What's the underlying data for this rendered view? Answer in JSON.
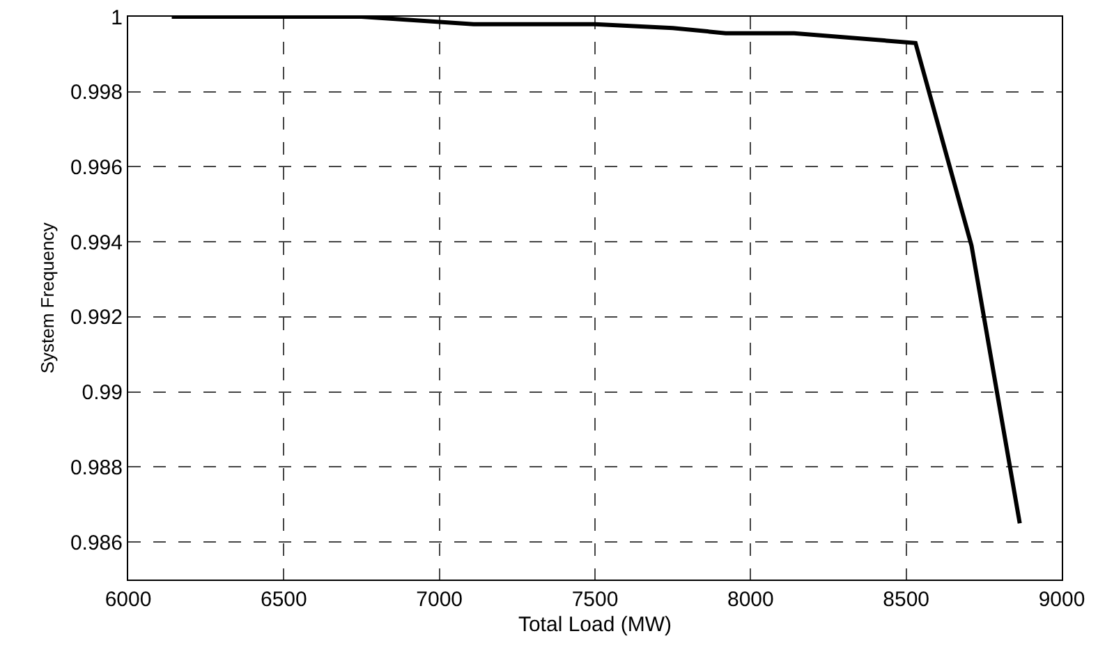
{
  "chart_data": {
    "type": "line",
    "xlabel": "Total Load (MW)",
    "ylabel": "System Frequency",
    "x": [
      6140,
      6750,
      7110,
      7500,
      7750,
      7920,
      8140,
      8530,
      8710,
      8865
    ],
    "series": [
      {
        "color": "#000000",
        "values": [
          1,
          1,
          0.9998,
          0.9998,
          0.9997,
          0.99956,
          0.99956,
          0.9993,
          0.9939,
          0.9865
        ]
      }
    ],
    "xlim": [
      6000,
      9000
    ],
    "xticks": [
      6000,
      6500,
      7000,
      7500,
      8000,
      8500,
      9000
    ],
    "ylim": [
      0.985,
      1
    ],
    "yticks": [
      0.986,
      0.988,
      0.99,
      0.992,
      0.994,
      0.996,
      0.998,
      1
    ],
    "grid": true,
    "line_style": "solid",
    "marker": "none"
  }
}
